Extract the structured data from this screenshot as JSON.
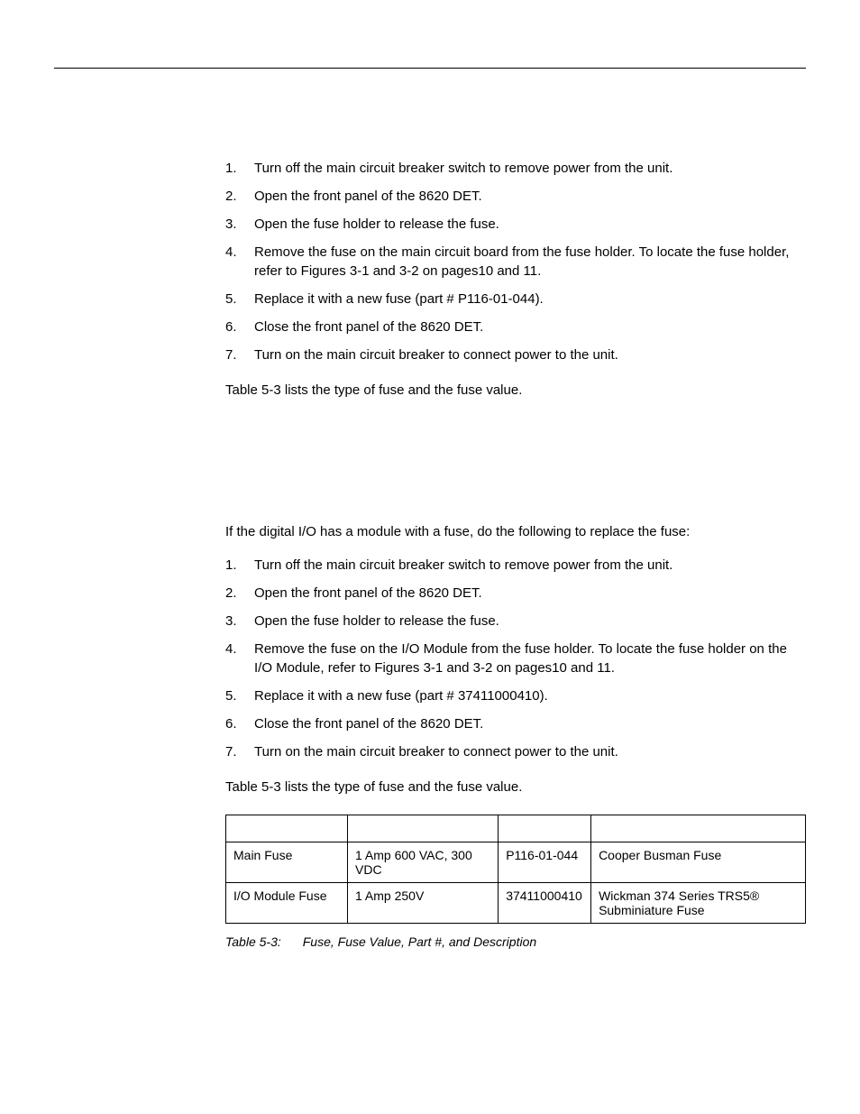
{
  "section1": {
    "steps": [
      "Turn off the main circuit breaker switch to remove power from the unit.",
      "Open the front panel of the 8620 DET.",
      "Open the fuse holder to release the fuse.",
      "Remove the fuse on the main circuit board from the fuse holder. To locate the fuse holder, refer to Figures 3-1 and 3-2 on pages10 and 11.",
      "Replace it with a new fuse (part # P116-01-044).",
      "Close the front panel of the 8620 DET.",
      "Turn on the main circuit breaker to connect power to the unit."
    ],
    "footnote": "Table 5-3 lists the type of fuse and the fuse value."
  },
  "section2": {
    "intro": "If the digital I/O has a module with a fuse, do the following to replace the fuse:",
    "steps": [
      "Turn off the main circuit breaker switch to remove power from the unit.",
      "Open the front panel of the 8620 DET.",
      "Open the fuse holder to release the fuse.",
      "Remove the fuse on the I/O Module from the fuse holder. To locate the fuse holder on the I/O Module, refer to Figures 3-1 and 3-2 on pages10 and 11.",
      "Replace it with a new fuse (part # 37411000410).",
      "Close the front panel of the 8620 DET.",
      "Turn on the main circuit breaker to connect power to the unit."
    ],
    "footnote": "Table 5-3 lists the type of fuse and the fuse value."
  },
  "table": {
    "columns": [
      "",
      "",
      "",
      ""
    ],
    "col_widths": [
      "21%",
      "26%",
      "16%",
      "37%"
    ],
    "rows": [
      [
        "Main Fuse",
        "1 Amp 600 VAC, 300 VDC",
        "P116-01-044",
        "Cooper Busman Fuse"
      ],
      [
        "I/O Module Fuse",
        "1 Amp 250V",
        "37411000410",
        "Wickman 374 Series TRS5® Subminiature Fuse"
      ]
    ],
    "caption_label": "Table 5-3:",
    "caption_text": "Fuse, Fuse Value, Part #, and Description"
  }
}
